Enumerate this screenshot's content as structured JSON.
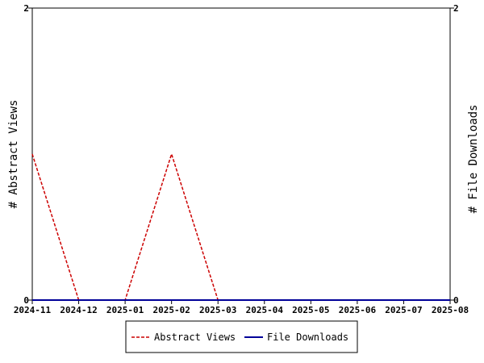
{
  "chart_data": {
    "type": "line",
    "x": [
      "2024-11",
      "2024-12",
      "2025-01",
      "2025-02",
      "2025-03",
      "2025-04",
      "2025-05",
      "2025-06",
      "2025-07",
      "2025-08"
    ],
    "series": [
      {
        "name": "Abstract Views",
        "axis": "left",
        "color": "#cc0000",
        "dash": "dashed",
        "points": [
          {
            "x": "2024-11",
            "y": 1
          },
          {
            "x": "2024-12",
            "y": 0
          },
          {
            "x": "2025-01",
            "y": 0
          },
          {
            "x": "2025-02",
            "y": 1
          },
          {
            "x": "2025-03",
            "y": 0
          }
        ]
      },
      {
        "name": "File Downloads",
        "axis": "right",
        "color": "#000099",
        "dash": "solid",
        "points": [
          {
            "x": "2024-11",
            "y": 0
          },
          {
            "x": "2025-08",
            "y": 0
          }
        ]
      }
    ],
    "ylabel": "# Abstract Views",
    "y2label": "# File Downloads",
    "ylim": [
      0,
      2
    ],
    "y2lim": [
      0,
      2
    ],
    "yticks": [
      "0",
      "2"
    ],
    "y2ticks": [
      "0",
      "2"
    ],
    "grid": false,
    "legend_position": "bottom"
  }
}
